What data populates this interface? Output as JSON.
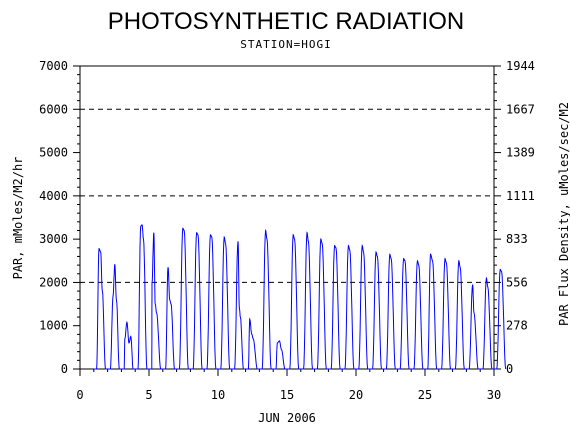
{
  "chart_data": {
    "type": "line",
    "title": "PHOTOSYNTHETIC RADIATION",
    "subtitle": "STATION=HOGI",
    "xlabel": "JUN 2006",
    "ylabel_left": "PAR, mMoles/M2/hr",
    "ylabel_right": "PAR Flux Density, uMoles/sec/M2",
    "xlim": [
      0,
      30
    ],
    "ylim": [
      0,
      7000
    ],
    "x_ticks": [
      "0",
      "5",
      "10",
      "15",
      "20",
      "25",
      "30"
    ],
    "y_ticks_left": [
      "0",
      "1000",
      "2000",
      "3000",
      "4000",
      "5000",
      "6000",
      "7000"
    ],
    "y_ticks_right": [
      "0",
      "278",
      "556",
      "833",
      "1111",
      "1389",
      "1667",
      "1944"
    ],
    "gridlines_y": [
      2000,
      4000,
      6000
    ],
    "line_color": "#0000ff",
    "series": [
      {
        "daily_peaks": [
          {
            "day": 1,
            "peaks": [
              [
                0.38,
                2780
              ],
              [
                0.5,
                2700
              ],
              [
                0.62,
                1800
              ]
            ]
          },
          {
            "day": 2,
            "peaks": [
              [
                0.4,
                1700
              ],
              [
                0.52,
                2420
              ],
              [
                0.64,
                1600
              ]
            ]
          },
          {
            "day": 3,
            "peaks": [
              [
                0.25,
                700
              ],
              [
                0.4,
                1080
              ],
              [
                0.55,
                600
              ],
              [
                0.68,
                750
              ]
            ]
          },
          {
            "day": 4,
            "peaks": [
              [
                0.4,
                3300
              ],
              [
                0.5,
                3330
              ],
              [
                0.6,
                3000
              ]
            ]
          },
          {
            "day": 5,
            "peaks": [
              [
                0.22,
                2000
              ],
              [
                0.35,
                3150
              ],
              [
                0.45,
                1500
              ],
              [
                0.55,
                1300
              ]
            ]
          },
          {
            "day": 6,
            "peaks": [
              [
                0.38,
                2350
              ],
              [
                0.5,
                1600
              ],
              [
                0.6,
                1500
              ]
            ]
          },
          {
            "day": 7,
            "peaks": [
              [
                0.45,
                3250
              ],
              [
                0.55,
                3200
              ]
            ]
          },
          {
            "day": 8,
            "peaks": [
              [
                0.45,
                3150
              ],
              [
                0.55,
                3100
              ]
            ]
          },
          {
            "day": 9,
            "peaks": [
              [
                0.45,
                3100
              ],
              [
                0.55,
                3050
              ]
            ]
          },
          {
            "day": 10,
            "peaks": [
              [
                0.45,
                3050
              ],
              [
                0.55,
                2900
              ]
            ]
          },
          {
            "day": 11,
            "peaks": [
              [
                0.45,
                2950
              ],
              [
                0.55,
                1400
              ],
              [
                0.62,
                1200
              ]
            ]
          },
          {
            "day": 12,
            "peaks": [
              [
                0.3,
                1150
              ],
              [
                0.45,
                800
              ],
              [
                0.55,
                700
              ]
            ]
          },
          {
            "day": 13,
            "peaks": [
              [
                0.45,
                3200
              ],
              [
                0.55,
                3000
              ]
            ]
          },
          {
            "day": 14,
            "peaks": [
              [
                0.3,
                600
              ],
              [
                0.45,
                650
              ],
              [
                0.6,
                450
              ]
            ]
          },
          {
            "day": 15,
            "peaks": [
              [
                0.45,
                3100
              ],
              [
                0.55,
                3000
              ]
            ]
          },
          {
            "day": 16,
            "peaks": [
              [
                0.45,
                3150
              ],
              [
                0.55,
                2950
              ]
            ]
          },
          {
            "day": 17,
            "peaks": [
              [
                0.45,
                3000
              ],
              [
                0.55,
                2900
              ]
            ]
          },
          {
            "day": 18,
            "peaks": [
              [
                0.45,
                2850
              ],
              [
                0.55,
                2800
              ]
            ]
          },
          {
            "day": 19,
            "peaks": [
              [
                0.45,
                2850
              ],
              [
                0.55,
                2750
              ]
            ]
          },
          {
            "day": 20,
            "peaks": [
              [
                0.45,
                2850
              ],
              [
                0.55,
                2700
              ]
            ]
          },
          {
            "day": 21,
            "peaks": [
              [
                0.45,
                2700
              ],
              [
                0.55,
                2600
              ]
            ]
          },
          {
            "day": 22,
            "peaks": [
              [
                0.45,
                2650
              ],
              [
                0.55,
                2550
              ]
            ]
          },
          {
            "day": 23,
            "peaks": [
              [
                0.45,
                2550
              ],
              [
                0.55,
                2500
              ]
            ]
          },
          {
            "day": 24,
            "peaks": [
              [
                0.45,
                2500
              ],
              [
                0.55,
                2400
              ]
            ]
          },
          {
            "day": 25,
            "peaks": [
              [
                0.4,
                2650
              ],
              [
                0.55,
                2500
              ]
            ]
          },
          {
            "day": 26,
            "peaks": [
              [
                0.45,
                2550
              ],
              [
                0.55,
                2450
              ]
            ]
          },
          {
            "day": 27,
            "peaks": [
              [
                0.45,
                2500
              ],
              [
                0.55,
                2350
              ]
            ]
          },
          {
            "day": 28,
            "peaks": [
              [
                0.45,
                1950
              ],
              [
                0.55,
                1300
              ]
            ]
          },
          {
            "day": 29,
            "peaks": [
              [
                0.45,
                2100
              ],
              [
                0.55,
                1900
              ]
            ]
          },
          {
            "day": 30,
            "peaks": [
              [
                0.45,
                2300
              ],
              [
                0.55,
                2250
              ]
            ]
          }
        ]
      }
    ]
  }
}
